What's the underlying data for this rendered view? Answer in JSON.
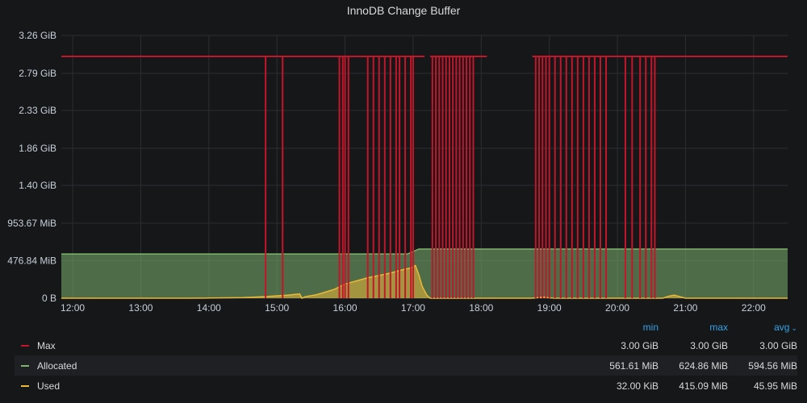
{
  "panel": {
    "title": "InnoDB Change Buffer"
  },
  "legend": {
    "columns": [
      "min",
      "max",
      "avg"
    ],
    "sort_indicator": "chevron-down",
    "rows": [
      {
        "name": "Max",
        "color": "#c4162a",
        "min": "3.00 GiB",
        "max": "3.00 GiB",
        "avg": "3.00 GiB"
      },
      {
        "name": "Allocated",
        "color": "#7eb26d",
        "min": "561.61 MiB",
        "max": "624.86 MiB",
        "avg": "594.56 MiB"
      },
      {
        "name": "Used",
        "color": "#eab839",
        "min": "32.00 KiB",
        "max": "415.09 MiB",
        "avg": "45.95 MiB"
      }
    ]
  },
  "chart_data": {
    "type": "line",
    "title": "InnoDB Change Buffer",
    "y_unit": "MiB",
    "ylim": [
      0,
      3338.24
    ],
    "y_ticks": [
      {
        "value": 0,
        "label": "0 B"
      },
      {
        "value": 476.84,
        "label": "476.84 MiB"
      },
      {
        "value": 953.67,
        "label": "953.67 MiB"
      },
      {
        "value": 1433.6,
        "label": "1.40 GiB"
      },
      {
        "value": 1904.64,
        "label": "1.86 GiB"
      },
      {
        "value": 2385.92,
        "label": "2.33 GiB"
      },
      {
        "value": 2856.96,
        "label": "2.79 GiB"
      },
      {
        "value": 3338.24,
        "label": "3.26 GiB"
      }
    ],
    "xlim": [
      "11:50",
      "22:30"
    ],
    "x_ticks": [
      "12:00",
      "13:00",
      "14:00",
      "15:00",
      "16:00",
      "17:00",
      "18:00",
      "19:00",
      "20:00",
      "21:00",
      "22:00"
    ],
    "grid": true,
    "legend_position": "bottom",
    "series": [
      {
        "name": "Max",
        "color": "#c4162a",
        "style": "line",
        "level": 3072,
        "gaps": [
          [
            "17:10",
            "17:15"
          ],
          [
            "18:05",
            "18:45"
          ]
        ],
        "drops": [
          "14:50",
          "15:05",
          "15:55",
          "15:58",
          "16:00",
          "16:03",
          "16:20",
          "16:25",
          "16:30",
          "16:35",
          "16:40",
          "16:45",
          "16:48",
          "16:53",
          "16:58",
          "17:00",
          "17:17",
          "17:20",
          "17:23",
          "17:26",
          "17:29",
          "17:32",
          "17:35",
          "17:38",
          "17:41",
          "17:44",
          "17:47",
          "17:50",
          "17:53",
          "18:45",
          "18:48",
          "18:51",
          "18:54",
          "18:57",
          "19:00",
          "19:05",
          "19:10",
          "19:15",
          "19:20",
          "19:25",
          "19:30",
          "19:35",
          "19:40",
          "19:45",
          "19:50",
          "20:07",
          "20:13",
          "20:20",
          "20:25",
          "20:30",
          "20:33"
        ]
      },
      {
        "name": "Allocated",
        "color": "#7eb26d",
        "style": "area",
        "points": [
          [
            "11:50",
            561.61
          ],
          [
            "16:55",
            561.61
          ],
          [
            "17:05",
            624.86
          ],
          [
            "22:30",
            624.86
          ]
        ]
      },
      {
        "name": "Used",
        "color": "#eab839",
        "style": "area",
        "points": [
          [
            "11:50",
            0.03
          ],
          [
            "13:40",
            0.03
          ],
          [
            "14:00",
            2
          ],
          [
            "14:30",
            8
          ],
          [
            "14:50",
            20
          ],
          [
            "15:10",
            40
          ],
          [
            "15:20",
            55
          ],
          [
            "15:22",
            0.03
          ],
          [
            "15:25",
            20
          ],
          [
            "15:35",
            45
          ],
          [
            "15:50",
            110
          ],
          [
            "16:00",
            180
          ],
          [
            "16:10",
            220
          ],
          [
            "16:20",
            260
          ],
          [
            "16:30",
            290
          ],
          [
            "16:40",
            320
          ],
          [
            "16:50",
            360
          ],
          [
            "16:58",
            385
          ],
          [
            "17:02",
            415.09
          ],
          [
            "17:05",
            300
          ],
          [
            "17:08",
            150
          ],
          [
            "17:12",
            40
          ],
          [
            "17:15",
            0.03
          ],
          [
            "18:45",
            0.03
          ],
          [
            "18:55",
            15
          ],
          [
            "19:00",
            5
          ],
          [
            "19:05",
            0.03
          ],
          [
            "20:40",
            0.03
          ],
          [
            "20:45",
            25
          ],
          [
            "20:50",
            40
          ],
          [
            "20:55",
            20
          ],
          [
            "21:00",
            0.03
          ],
          [
            "22:30",
            0.03
          ]
        ]
      }
    ]
  }
}
